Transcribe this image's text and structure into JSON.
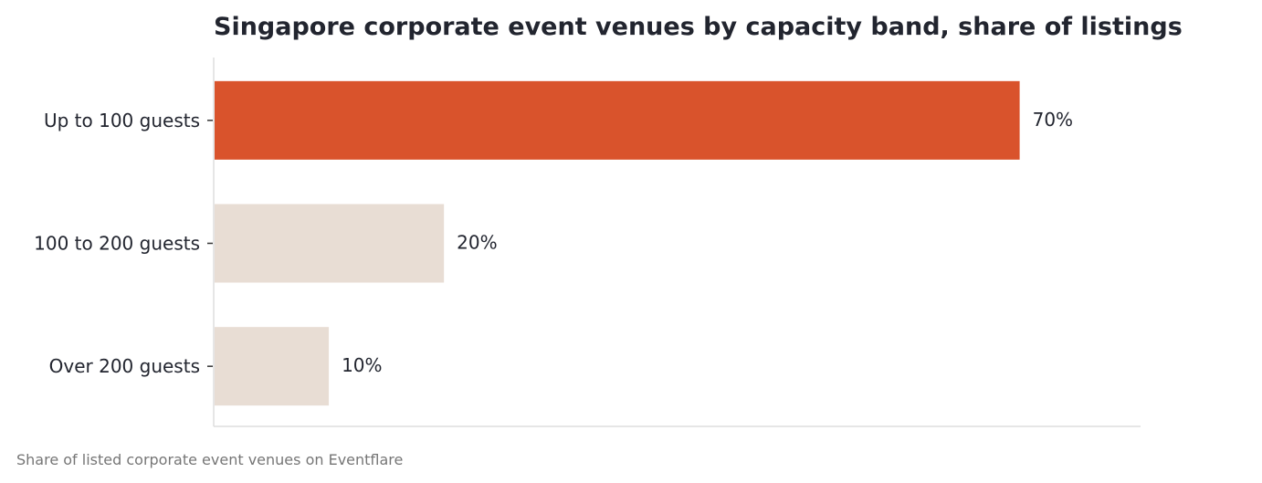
{
  "chart_data": {
    "type": "bar",
    "orientation": "horizontal",
    "title": "Singapore corporate event venues by capacity band, share of listings",
    "caption": "Share of listed corporate event venues on Eventflare",
    "categories": [
      "Up to 100 guests",
      "100 to 200 guests",
      "Over 200 guests"
    ],
    "values": [
      70,
      20,
      10
    ],
    "value_labels": [
      "70%",
      "20%",
      "10%"
    ],
    "value_unit": "%",
    "xlim": [
      0,
      80.5
    ],
    "grid": false,
    "legend": "none",
    "highlight_index": 0,
    "colors": {
      "highlight": "#d9532c",
      "muted": "#e8ddd4",
      "axis": "#dddddd",
      "tick": "#333333"
    }
  }
}
